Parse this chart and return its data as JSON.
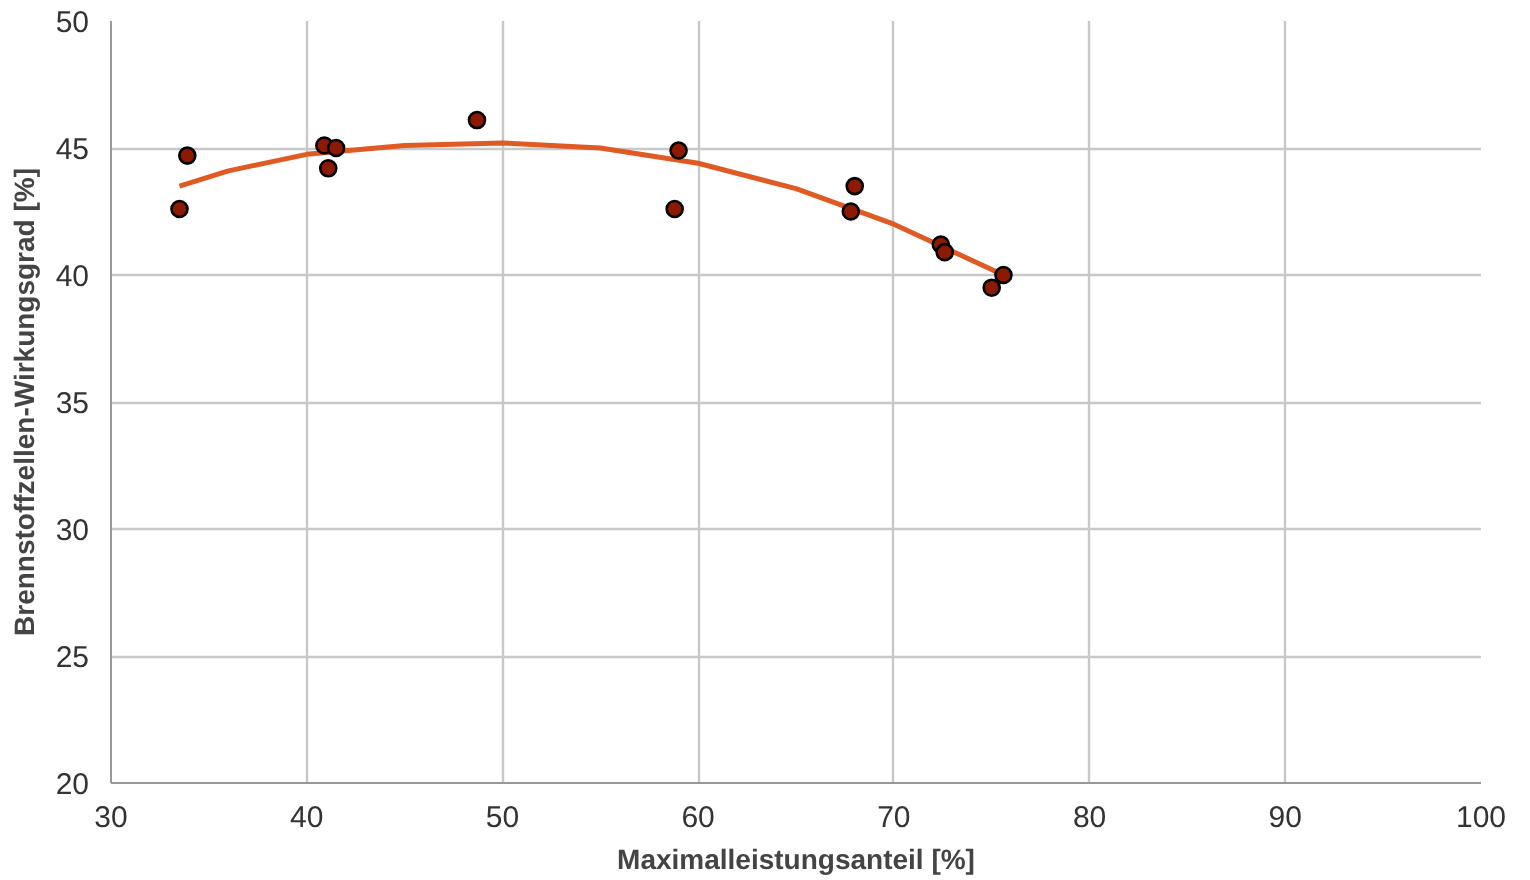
{
  "chart_data": {
    "type": "scatter",
    "xlabel": "Maximalleistungsanteil [%]",
    "ylabel": "Brennstoffzellen-Wirkungsgrad [%]",
    "xlim": [
      30,
      100
    ],
    "xticks": [
      30,
      40,
      50,
      60,
      70,
      80,
      90,
      100
    ],
    "ylim": [
      20,
      50
    ],
    "yticks": [
      20,
      25,
      30,
      35,
      40,
      45,
      50
    ],
    "grid": true,
    "series": [
      {
        "color": "#8b1a00",
        "marker": "circle",
        "x": [
          33.5,
          33.9,
          40.9,
          41.5,
          41.1,
          48.7,
          59.0,
          58.8,
          68.0,
          67.8,
          72.4,
          72.6,
          75.0,
          75.6
        ],
        "values": [
          42.6,
          44.7,
          45.1,
          45.0,
          44.2,
          46.1,
          44.9,
          42.6,
          43.5,
          42.5,
          41.2,
          40.9,
          39.5,
          40.0
        ]
      },
      {
        "type": "line",
        "color": "#e05a23",
        "line_style": "solid",
        "x": [
          33.5,
          36,
          40,
          45,
          50,
          55,
          60,
          65,
          70,
          75.6
        ],
        "values": [
          43.5,
          44.1,
          44.75,
          45.1,
          45.2,
          45.0,
          44.4,
          43.4,
          42.0,
          40.0
        ]
      }
    ]
  }
}
